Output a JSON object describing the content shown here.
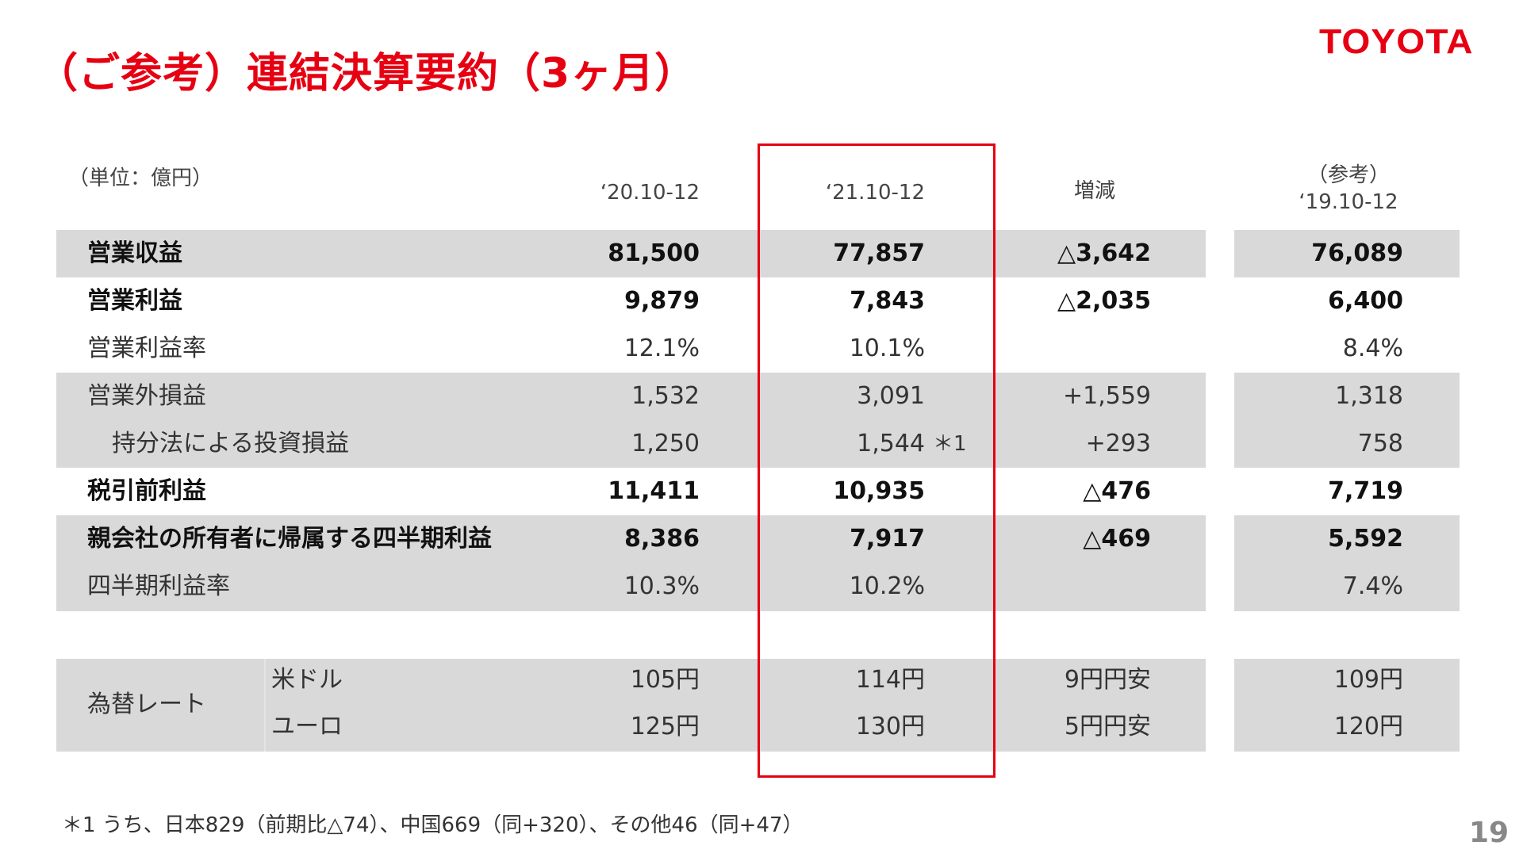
{
  "title": "（ご参考）連結決算要約（3ヶ月）",
  "logo": "TOYOTA",
  "unit": "（単位：億円）",
  "columns": {
    "prev": "‘20.10-12",
    "curr": "‘21.10-12",
    "diff": "増減",
    "ref_label": "（参考）",
    "ref": "‘19.10-12"
  },
  "rows": [
    {
      "label": "営業収益",
      "prev": "81,500",
      "curr": "77,857",
      "diff": "△3,642",
      "ref": "76,089"
    },
    {
      "label": "営業利益",
      "prev": "9,879",
      "curr": "7,843",
      "diff": "△2,035",
      "ref": "6,400"
    },
    {
      "label": "営業利益率",
      "prev": "12.1%",
      "curr": "10.1%",
      "diff": "",
      "ref": "8.4%"
    },
    {
      "label": "営業外損益",
      "prev": "1,532",
      "curr": "3,091",
      "diff": "+1,559",
      "ref": "1,318"
    },
    {
      "label": "持分法による投資損益",
      "prev": "1,250",
      "curr": "1,544",
      "curr_note": "＊1",
      "diff": "+293",
      "ref": "758"
    },
    {
      "label": "税引前利益",
      "prev": "11,411",
      "curr": "10,935",
      "diff": "△476",
      "ref": "7,719"
    },
    {
      "label": "親会社の所有者に帰属する四半期利益",
      "prev": "8,386",
      "curr": "7,917",
      "diff": "△469",
      "ref": "5,592"
    },
    {
      "label": "四半期利益率",
      "prev": "10.3%",
      "curr": "10.2%",
      "diff": "",
      "ref": "7.4%"
    }
  ],
  "fx": {
    "label": "為替レート",
    "rows": [
      {
        "label": "米ドル",
        "prev": "105円",
        "curr": "114円",
        "diff": "9円円安",
        "ref": "109円"
      },
      {
        "label": "ユーロ",
        "prev": "125円",
        "curr": "130円",
        "diff": "5円円安",
        "ref": "120円"
      }
    ]
  },
  "footnote": "＊1 うち、日本829（前期比△74）、中国669（同+320）、その他46（同+47）",
  "page_number": "19",
  "colors": {
    "accent": "#e60012",
    "row_shade": "#d9d9d9"
  }
}
